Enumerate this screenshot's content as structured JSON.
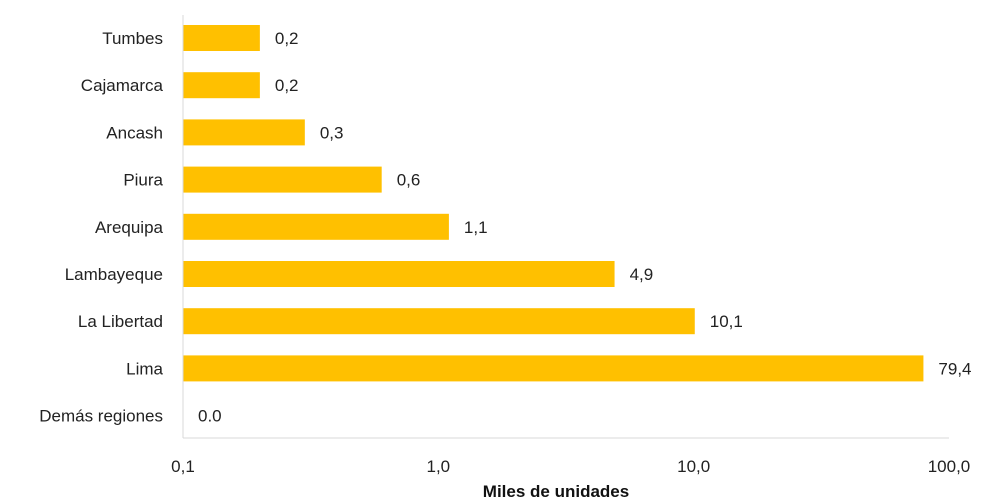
{
  "chart_data": {
    "type": "bar",
    "orientation": "horizontal",
    "xscale": "log",
    "xlim": [
      0.1,
      100
    ],
    "categories": [
      "Tumbes",
      "Cajamarca",
      "Ancash",
      "Piura",
      "Arequipa",
      "Lambayeque",
      "La Libertad",
      "Lima",
      "Demás regiones"
    ],
    "values": [
      0.2,
      0.2,
      0.3,
      0.6,
      1.1,
      4.9,
      10.1,
      79.4,
      0.0
    ],
    "value_labels": [
      "0,2",
      "0,2",
      "0,3",
      "0,6",
      "1,1",
      "4,9",
      "10,1",
      "79,4",
      "0.0"
    ],
    "xticks": [
      0.1,
      1,
      10,
      100
    ],
    "xtick_labels": [
      "0,1",
      "1,0",
      "10,0",
      "100,0"
    ],
    "xlabel": "Miles de unidades",
    "ylabel": "",
    "title": "",
    "bar_color": "#FFC000",
    "axis_color": "#D9D9D9",
    "grid": false,
    "legend": false
  }
}
